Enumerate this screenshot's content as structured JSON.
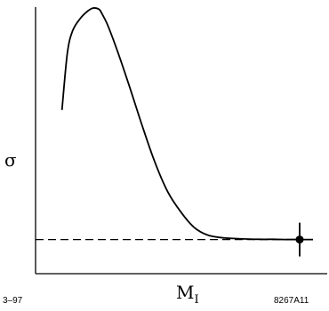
{
  "chart_data": {
    "type": "line",
    "xlabel": "M",
    "xlabel_sub": "I",
    "ylabel": "σ",
    "xlim": [
      0,
      100
    ],
    "ylim": [
      0,
      100
    ],
    "grid": false,
    "series": [
      {
        "style": "solid",
        "x": [
          10,
          12,
          14,
          17,
          20,
          22,
          24,
          25,
          27,
          30,
          35,
          40,
          45,
          50,
          55,
          60,
          65,
          70,
          75,
          80,
          85,
          90,
          95,
          100
        ],
        "y": [
          60,
          82,
          91,
          96,
          99,
          100,
          99.5,
          98,
          94,
          86,
          71,
          55,
          40,
          28,
          20,
          14,
          11,
          10,
          9.6,
          9.4,
          9.3,
          9.3,
          9.2,
          9.2
        ]
      },
      {
        "style": "dashed",
        "x": [
          0,
          100
        ],
        "y": [
          9.2,
          9.2
        ]
      }
    ],
    "points": [
      {
        "x": 100,
        "y": 9.2,
        "error_bars": true
      }
    ]
  },
  "notes": {
    "left": "3–97",
    "right": "8267A11"
  }
}
